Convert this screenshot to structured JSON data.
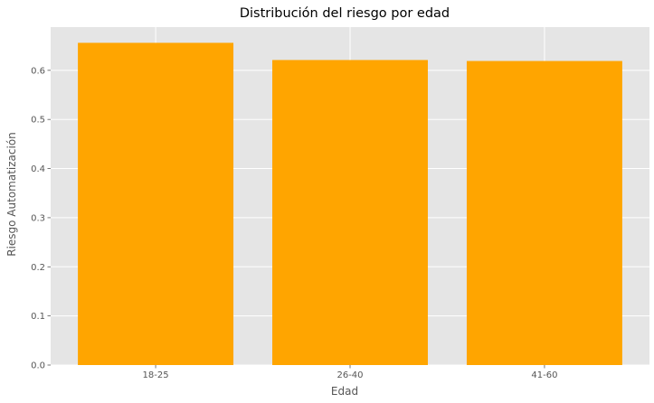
{
  "chart_data": {
    "type": "bar",
    "title": "Distribución del riesgo por edad",
    "xlabel": "Edad",
    "ylabel": "Riesgo Automatización",
    "categories": [
      "18-25",
      "26-40",
      "41-60"
    ],
    "values": [
      0.656,
      0.621,
      0.619
    ],
    "ylim": [
      0,
      0.688
    ],
    "yticks": [
      0.0,
      0.1,
      0.2,
      0.3,
      0.4,
      0.5,
      0.6
    ],
    "ytick_labels": [
      "0.0",
      "0.1",
      "0.2",
      "0.3",
      "0.4",
      "0.5",
      "0.6"
    ],
    "grid": true,
    "bar_color": "#FFA500",
    "background_color": "#E5E5E5",
    "grid_color": "#FFFFFF"
  }
}
